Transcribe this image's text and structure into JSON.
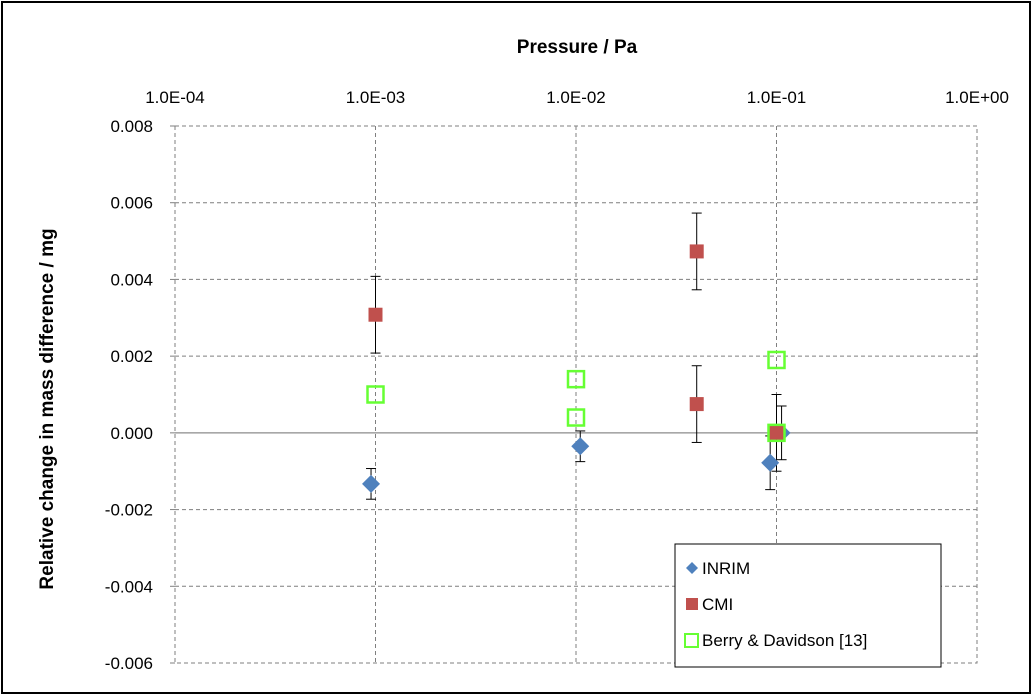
{
  "chart_data": {
    "type": "scatter",
    "title": "Pressure / Pa",
    "xlabel": "Pressure / Pa",
    "ylabel": "Relative change in  mass difference / mg",
    "x_scale": "log",
    "x_axis_position": "top",
    "xlim": [
      0.0001,
      1.0
    ],
    "ylim": [
      -0.006,
      0.008
    ],
    "x_tick_labels": [
      "1.0E-04",
      "1.0E-03",
      "1.0E-02",
      "1.0E-01",
      "1.0E+00"
    ],
    "x_ticks": [
      0.0001,
      0.001,
      0.01,
      0.1,
      1.0
    ],
    "y_tick_labels": [
      "0.008",
      "0.006",
      "0.004",
      "0.002",
      "0.000",
      "-0.002",
      "-0.004",
      "-0.006"
    ],
    "y_ticks": [
      0.008,
      0.006,
      0.004,
      0.002,
      0.0,
      -0.002,
      -0.004,
      -0.006
    ],
    "grid": true,
    "legend_position": "bottom-right",
    "series": [
      {
        "name": "INRIM",
        "marker": "diamond",
        "color": "#4f81bd",
        "points": [
          {
            "x": 0.00095,
            "y": -0.00133,
            "err": 0.0004
          },
          {
            "x": 0.0105,
            "y": -0.00035,
            "err": 0.0004
          },
          {
            "x": 0.093,
            "y": -0.00078,
            "err": 0.0007
          },
          {
            "x": 0.106,
            "y": 0.0,
            "err": 0.0007
          }
        ]
      },
      {
        "name": "CMI",
        "marker": "square",
        "color": "#c0504d",
        "points": [
          {
            "x": 0.001,
            "y": 0.00308,
            "err": 0.001
          },
          {
            "x": 0.04,
            "y": 0.00473,
            "err": 0.001
          },
          {
            "x": 0.04,
            "y": 0.00075,
            "err": 0.001
          },
          {
            "x": 0.1,
            "y": 0.0,
            "err": 0.001
          }
        ]
      },
      {
        "name": "Berry & Davidson [13]",
        "marker": "open-square",
        "color": "#66ff33",
        "points": [
          {
            "x": 0.001,
            "y": 0.001
          },
          {
            "x": 0.01,
            "y": 0.0014
          },
          {
            "x": 0.01,
            "y": 0.0004
          },
          {
            "x": 0.1,
            "y": 0.0019
          },
          {
            "x": 0.1,
            "y": 0.0
          }
        ]
      }
    ]
  }
}
